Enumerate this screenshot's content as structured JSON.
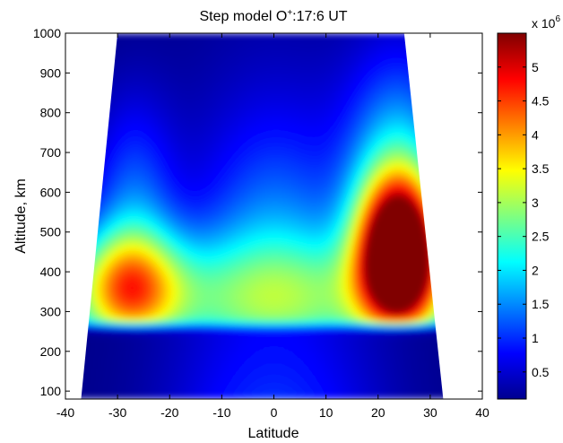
{
  "chart_data": {
    "type": "heatmap",
    "title_main": "Step model O",
    "title_sup": "+",
    "title_rest": ":17:6 UT",
    "xlabel": "Latitude",
    "ylabel": "Altitude, km",
    "xlim": [
      -40,
      40
    ],
    "ylim": [
      80,
      1000
    ],
    "xticks": [
      -40,
      -30,
      -20,
      -10,
      0,
      10,
      20,
      30,
      40
    ],
    "xtick_labels": [
      "-40",
      "-30",
      "-20",
      "-10",
      "0",
      "10",
      "20",
      "30",
      "40"
    ],
    "yticks": [
      100,
      200,
      300,
      400,
      500,
      600,
      700,
      800,
      900,
      1000
    ],
    "ytick_labels": [
      "100",
      "200",
      "300",
      "400",
      "500",
      "600",
      "700",
      "800",
      "900",
      "1000"
    ],
    "data_region": {
      "bottom_altitude": 80,
      "top_altitude": 1000,
      "lat_min_at_bottom": -37,
      "lat_max_at_bottom": 32.5,
      "lat_min_at_top": -30,
      "lat_max_at_top": 25
    },
    "colorbar": {
      "colormap": "jet",
      "min": 0.1,
      "max": 5.5,
      "ticks": [
        0.5,
        1,
        1.5,
        2,
        2.5,
        3,
        3.5,
        4,
        4.5,
        5
      ],
      "tick_labels": [
        "0.5",
        "1",
        "1.5",
        "2",
        "2.5",
        "3",
        "3.5",
        "4",
        "4.5",
        "5"
      ],
      "exponent_base": "x 10",
      "exponent_power": "6"
    },
    "features": [
      {
        "kind": "maximum",
        "lat": 24,
        "alt": 440,
        "value": 5.5
      },
      {
        "kind": "local-maximum",
        "lat": -29,
        "alt": 360,
        "value": 3.2
      },
      {
        "kind": "floor-band",
        "alt_max": 260,
        "value": 0.1
      }
    ]
  }
}
